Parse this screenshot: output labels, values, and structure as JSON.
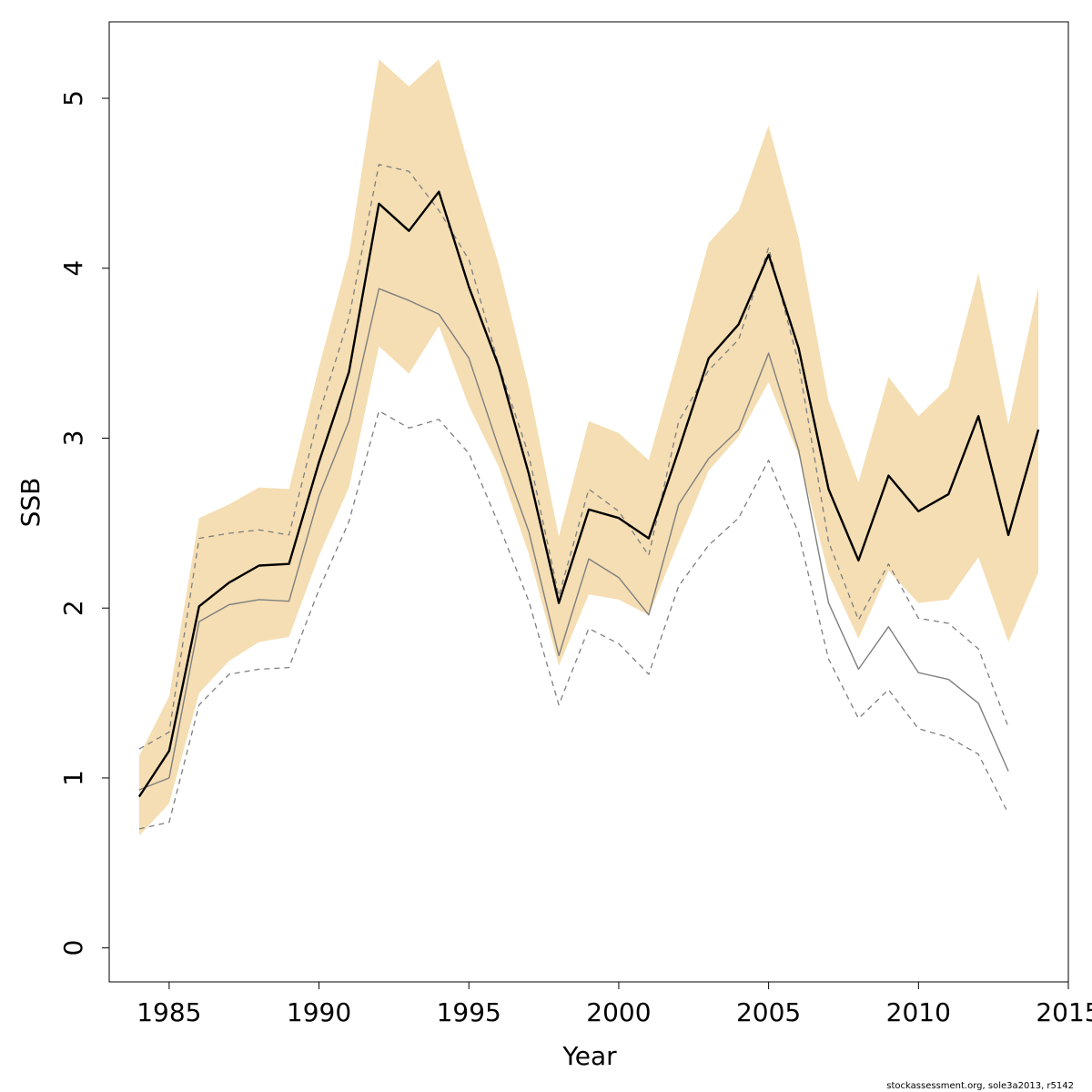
{
  "chart_data": {
    "type": "line",
    "xlabel": "Year",
    "ylabel": "SSB",
    "xlim": [
      1983,
      2015
    ],
    "ylim": [
      -0.2,
      5.45
    ],
    "x_ticks": [
      "1985",
      "1990",
      "1995",
      "2000",
      "2005",
      "2010",
      "2015"
    ],
    "y_ticks": [
      "0",
      "1",
      "2",
      "3",
      "4",
      "5"
    ],
    "colors": {
      "band": "#f5deb3",
      "current": "#000000",
      "previous": "#7f7f7f",
      "previous_ci": "#7f7f7f"
    },
    "band": {
      "x": [
        1984,
        1985,
        1986,
        1987,
        1988,
        1989,
        1990,
        1991,
        1992,
        1993,
        1994,
        1995,
        1996,
        1997,
        1998,
        1999,
        2000,
        2001,
        2002,
        2003,
        2004,
        2005,
        2006,
        2007,
        2008,
        2009,
        2010,
        2011,
        2012,
        2013,
        2014
      ],
      "upper": [
        1.13,
        1.48,
        2.53,
        2.61,
        2.71,
        2.7,
        3.42,
        4.08,
        5.23,
        5.07,
        5.23,
        4.6,
        4.02,
        3.3,
        2.42,
        3.1,
        3.03,
        2.87,
        3.5,
        4.15,
        4.34,
        4.84,
        4.18,
        3.22,
        2.74,
        3.36,
        3.13,
        3.3,
        3.97,
        3.08,
        3.89
      ],
      "lower": [
        0.66,
        0.85,
        1.5,
        1.69,
        1.8,
        1.83,
        2.31,
        2.71,
        3.54,
        3.38,
        3.66,
        3.19,
        2.83,
        2.32,
        1.66,
        2.08,
        2.05,
        1.96,
        2.39,
        2.81,
        3.01,
        3.33,
        2.9,
        2.2,
        1.82,
        2.22,
        2.03,
        2.05,
        2.3,
        1.8,
        2.21
      ]
    },
    "series": [
      {
        "x": [
          1984,
          1985,
          1986,
          1987,
          1988,
          1989,
          1990,
          1991,
          1992,
          1993,
          1994,
          1995,
          1996,
          1997,
          1998,
          1999,
          2000,
          2001,
          2002,
          2003,
          2004,
          2005,
          2006,
          2007,
          2008,
          2009,
          2010,
          2011,
          2012,
          2013,
          2014
        ],
        "values": [
          0.89,
          1.16,
          2.01,
          2.15,
          2.25,
          2.26,
          2.86,
          3.39,
          4.38,
          4.22,
          4.45,
          3.89,
          3.42,
          2.79,
          2.03,
          2.58,
          2.53,
          2.41,
          2.93,
          3.47,
          3.67,
          4.08,
          3.53,
          2.7,
          2.28,
          2.78,
          2.57,
          2.67,
          3.13,
          2.43,
          3.05
        ]
      },
      {
        "x": [
          1984,
          1985,
          1986,
          1987,
          1988,
          1989,
          1990,
          1991,
          1992,
          1993,
          1994,
          1995,
          1996,
          1997,
          1998,
          1999,
          2000,
          2001,
          2002,
          2003,
          2004,
          2005,
          2006,
          2007,
          2008,
          2009,
          2010,
          2011,
          2012,
          2013
        ],
        "values": [
          0.93,
          1.0,
          1.92,
          2.02,
          2.05,
          2.04,
          2.66,
          3.1,
          3.88,
          3.81,
          3.73,
          3.47,
          2.94,
          2.45,
          1.72,
          2.29,
          2.18,
          1.96,
          2.61,
          2.88,
          3.05,
          3.5,
          2.93,
          2.03,
          1.64,
          1.89,
          1.62,
          1.58,
          1.44,
          1.04
        ]
      },
      {
        "x": [
          1984,
          1985,
          1986,
          1987,
          1988,
          1989,
          1990,
          1991,
          1992,
          1993,
          1994,
          1995,
          1996,
          1997,
          1998,
          1999,
          2000,
          2001,
          2002,
          2003,
          2004,
          2005,
          2006,
          2007,
          2008,
          2009,
          2010,
          2011,
          2012,
          2013
        ],
        "values": [
          1.17,
          1.27,
          2.41,
          2.44,
          2.46,
          2.43,
          3.14,
          3.71,
          4.61,
          4.57,
          4.34,
          4.05,
          3.43,
          2.9,
          2.07,
          2.7,
          2.57,
          2.31,
          3.1,
          3.4,
          3.58,
          4.12,
          3.44,
          2.39,
          1.93,
          2.26,
          1.94,
          1.91,
          1.76,
          1.3
        ]
      },
      {
        "x": [
          1984,
          1985,
          1986,
          1987,
          1988,
          1989,
          1990,
          1991,
          1992,
          1993,
          1994,
          1995,
          1996,
          1997,
          1998,
          1999,
          2000,
          2001,
          2002,
          2003,
          2004,
          2005,
          2006,
          2007,
          2008,
          2009,
          2010,
          2011,
          2012,
          2013
        ],
        "values": [
          0.7,
          0.74,
          1.43,
          1.61,
          1.64,
          1.65,
          2.11,
          2.51,
          3.16,
          3.06,
          3.11,
          2.91,
          2.49,
          2.04,
          1.43,
          1.88,
          1.79,
          1.61,
          2.13,
          2.37,
          2.53,
          2.87,
          2.44,
          1.7,
          1.35,
          1.52,
          1.29,
          1.24,
          1.14,
          0.79
        ]
      }
    ],
    "credit": "stockassessment.org, sole3a2013, r5142"
  }
}
